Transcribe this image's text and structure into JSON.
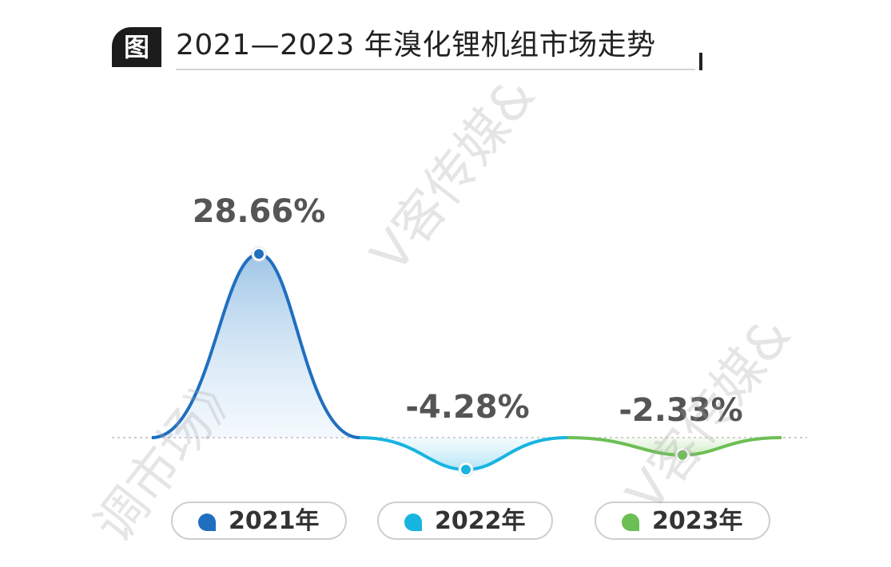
{
  "title": {
    "badge": "图",
    "text": "2021—2023 年溴化锂机组市场走势"
  },
  "chart_data": {
    "type": "line",
    "title": "2021—2023 年溴化锂机组市场走势",
    "categories": [
      "2021年",
      "2022年",
      "2023年"
    ],
    "values": [
      28.66,
      -4.28,
      -2.33
    ],
    "value_labels": [
      "28.66%",
      "-4.28%",
      "-2.33%"
    ],
    "unit": "%",
    "baseline": 0,
    "legend": "bottom",
    "series_colors": [
      "#1f6fc0",
      "#18b4e0",
      "#6cbf55"
    ]
  },
  "legend": [
    {
      "label": "2021年",
      "color": "#1f6fc0"
    },
    {
      "label": "2022年",
      "color": "#18b4e0"
    },
    {
      "label": "2023年",
      "color": "#6cbf55"
    }
  ],
  "watermarks": [
    "V客传媒&",
    "V客传媒&",
    "调市场》"
  ]
}
